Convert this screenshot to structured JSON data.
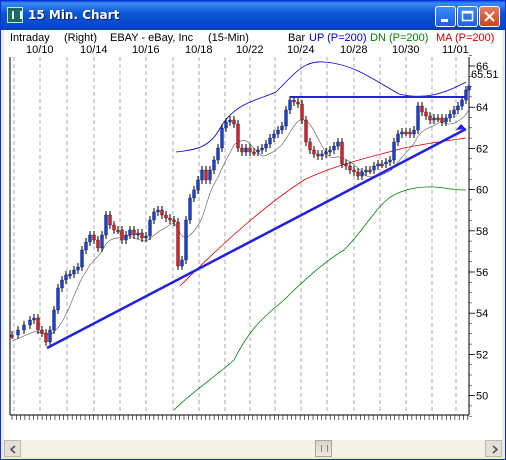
{
  "window": {
    "title": "15 Min. Chart",
    "icon": "app-chart-icon",
    "buttons": [
      "minimize",
      "maximize",
      "close"
    ]
  },
  "header": {
    "left": "Intraday",
    "right_label": "(Right)",
    "symbol": "EBAY - eBay, Inc",
    "interval": "(15-Min)",
    "bar": "Bar",
    "up": "UP (P=200)",
    "dn": "DN (P=200)",
    "ma": "MA (P=200)",
    "colors": {
      "up": "#0000cc",
      "dn": "#008000",
      "ma": "#cc0000"
    }
  },
  "date_labels": [
    "10/10",
    "10/14",
    "10/16",
    "10/18",
    "10/22",
    "10/24",
    "10/28",
    "10/30",
    "11/01"
  ],
  "y_labels": [
    "66",
    "64",
    "62",
    "60",
    "58",
    "56",
    "54",
    "52",
    "50"
  ],
  "last_price": "65.51",
  "scrollbar": {
    "left": "scroll-left-icon",
    "right": "scroll-right-icon"
  }
}
